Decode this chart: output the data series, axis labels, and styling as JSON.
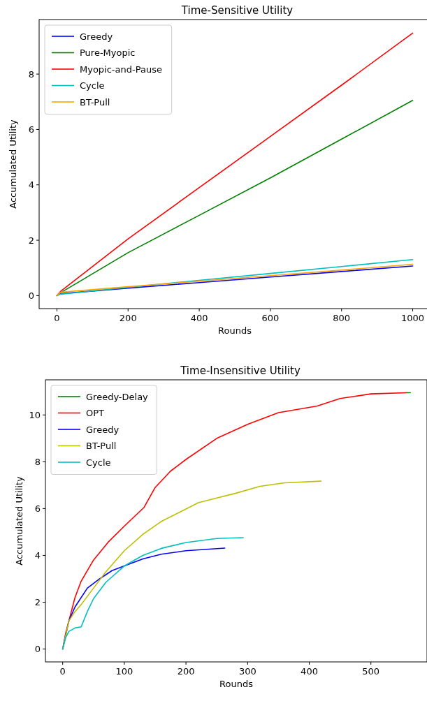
{
  "chart_data": [
    {
      "type": "line",
      "title": "Time-Sensitive Utility",
      "xlabel": "Rounds",
      "ylabel": "Accumulated Utility",
      "xlim": [
        -50,
        1050
      ],
      "ylim": [
        -0.47,
        9.97
      ],
      "xticks": [
        0,
        200,
        400,
        600,
        800,
        1000
      ],
      "yticks": [
        0,
        2,
        4,
        6,
        8
      ],
      "legend": "top left",
      "series": [
        {
          "name": "Greedy",
          "color": "#0000ff",
          "x": [
            0,
            10,
            200,
            400,
            600,
            800,
            1000
          ],
          "values": [
            0,
            0.07,
            0.27,
            0.47,
            0.67,
            0.87,
            1.07
          ]
        },
        {
          "name": "Pure-Myopic",
          "color": "#008000",
          "x": [
            0,
            10,
            200,
            400,
            600,
            800,
            1000
          ],
          "values": [
            0,
            0.1,
            1.55,
            2.9,
            4.25,
            5.65,
            7.05
          ]
        },
        {
          "name": "Myopic-and-Pause",
          "color": "#ff0000",
          "x": [
            0,
            10,
            200,
            400,
            600,
            800,
            1000
          ],
          "values": [
            0,
            0.15,
            2.05,
            3.9,
            5.75,
            7.6,
            9.48
          ]
        },
        {
          "name": "Cycle",
          "color": "#00bfbf",
          "x": [
            0,
            10,
            200,
            400,
            600,
            800,
            1000
          ],
          "values": [
            0,
            0.05,
            0.3,
            0.55,
            0.8,
            1.05,
            1.3
          ]
        },
        {
          "name": "BT-Pull",
          "color": "#ffa500",
          "x": [
            0,
            10,
            200,
            400,
            600,
            800,
            1000
          ],
          "values": [
            0,
            0.12,
            0.32,
            0.52,
            0.72,
            0.92,
            1.13
          ]
        }
      ]
    },
    {
      "type": "line",
      "title": "Time-Insensitive Utility",
      "xlabel": "Rounds",
      "ylabel": "Accumulated Utility",
      "xlim": [
        -28,
        591
      ],
      "ylim": [
        -0.55,
        11.5
      ],
      "xticks": [
        0,
        100,
        200,
        300,
        400,
        500
      ],
      "yticks": [
        0,
        2,
        4,
        6,
        8,
        10
      ],
      "legend": "top left",
      "series": [
        {
          "name": "Greedy-Delay",
          "color": "#008000",
          "x": [
            557,
            564
          ],
          "values": [
            10.95,
            10.95
          ]
        },
        {
          "name": "OPT",
          "color": "#ff0000",
          "x": [
            0,
            5,
            12,
            20,
            30,
            50,
            75,
            100,
            120,
            132,
            150,
            175,
            200,
            250,
            300,
            350,
            413,
            450,
            500,
            557
          ],
          "values": [
            0,
            0.7,
            1.4,
            2.2,
            2.9,
            3.8,
            4.6,
            5.25,
            5.75,
            6.05,
            6.9,
            7.6,
            8.1,
            9.0,
            9.6,
            10.1,
            10.38,
            10.7,
            10.9,
            10.95
          ]
        },
        {
          "name": "Greedy",
          "color": "#0000ff",
          "x": [
            0,
            10,
            20,
            40,
            60,
            80,
            100,
            130,
            160,
            200,
            263
          ],
          "values": [
            0,
            1.2,
            1.8,
            2.6,
            3.0,
            3.35,
            3.55,
            3.85,
            4.05,
            4.2,
            4.31
          ]
        },
        {
          "name": "BT-Pull",
          "color": "#bfbf00",
          "x": [
            0,
            10,
            20,
            30,
            50,
            70,
            100,
            130,
            160,
            190,
            220,
            250,
            280,
            320,
            360,
            419
          ],
          "values": [
            0,
            1.2,
            1.6,
            1.9,
            2.6,
            3.3,
            4.2,
            4.9,
            5.45,
            5.85,
            6.25,
            6.45,
            6.65,
            6.95,
            7.1,
            7.17
          ]
        },
        {
          "name": "Cycle",
          "color": "#00bfbf",
          "x": [
            0,
            5,
            10,
            20,
            30,
            40,
            50,
            70,
            100,
            130,
            160,
            200,
            250,
            293
          ],
          "values": [
            0,
            0.5,
            0.75,
            0.9,
            0.95,
            1.6,
            2.15,
            2.85,
            3.55,
            4.0,
            4.3,
            4.55,
            4.72,
            4.76
          ]
        }
      ]
    }
  ]
}
